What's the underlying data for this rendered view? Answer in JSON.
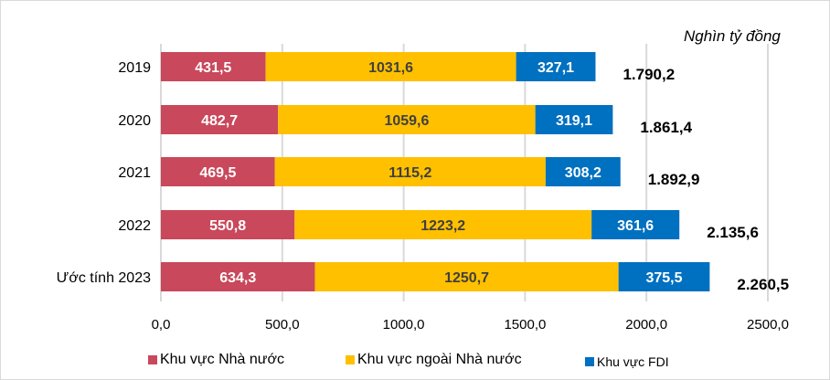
{
  "chart_data": {
    "type": "bar",
    "orientation": "horizontal",
    "stacked": true,
    "unit_label": "Nghìn tỷ đồng",
    "categories": [
      "2019",
      "2020",
      "2021",
      "2022",
      "Ước tính 2023"
    ],
    "series": [
      {
        "name": "Khu vực Nhà nước",
        "color": "#C9485B",
        "values": [
          431.5,
          482.7,
          469.5,
          550.8,
          634.3
        ],
        "labels": [
          "431,5",
          "482,7",
          "469,5",
          "550,8",
          "634,3"
        ]
      },
      {
        "name": "Khu vực ngoài Nhà nước",
        "color": "#FFC000",
        "values": [
          1031.6,
          1059.6,
          1115.2,
          1223.2,
          1250.7
        ],
        "labels": [
          "1031,6",
          "1059,6",
          "1115,2",
          "1223,2",
          "1250,7"
        ]
      },
      {
        "name": "Khu vực FDI",
        "color": "#0070C0",
        "values": [
          327.1,
          319.1,
          308.2,
          361.6,
          375.5
        ],
        "labels": [
          "327,1",
          "319,1",
          "308,2",
          "361,6",
          "375,5"
        ]
      }
    ],
    "totals": [
      "1.790,2",
      "1.861,4",
      "1.892,9",
      "2.135,6",
      "2.260,5"
    ],
    "xlim": [
      0,
      2500
    ],
    "xticks": [
      0,
      500,
      1000,
      1500,
      2000,
      2500
    ],
    "xtick_labels": [
      "0,0",
      "500,0",
      "1000,0",
      "1500,0",
      "2000,0",
      "2500,0"
    ],
    "grid": "vertical",
    "legend": "bottom"
  }
}
